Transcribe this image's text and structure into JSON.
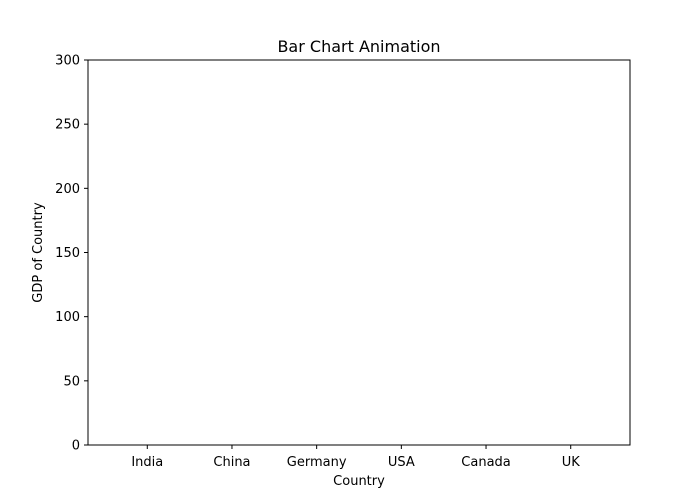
{
  "chart_data": {
    "type": "bar",
    "title": "Bar Chart Animation",
    "xlabel": "Country",
    "ylabel": "GDP of Country",
    "categories": [
      "India",
      "China",
      "Germany",
      "USA",
      "Canada",
      "UK"
    ],
    "values": [
      0,
      0,
      0,
      0,
      0,
      0
    ],
    "ylim": [
      0,
      300
    ],
    "yticks": [
      0,
      50,
      100,
      150,
      200,
      250,
      300
    ],
    "grid": false,
    "bar_color": "#1f77b4"
  }
}
